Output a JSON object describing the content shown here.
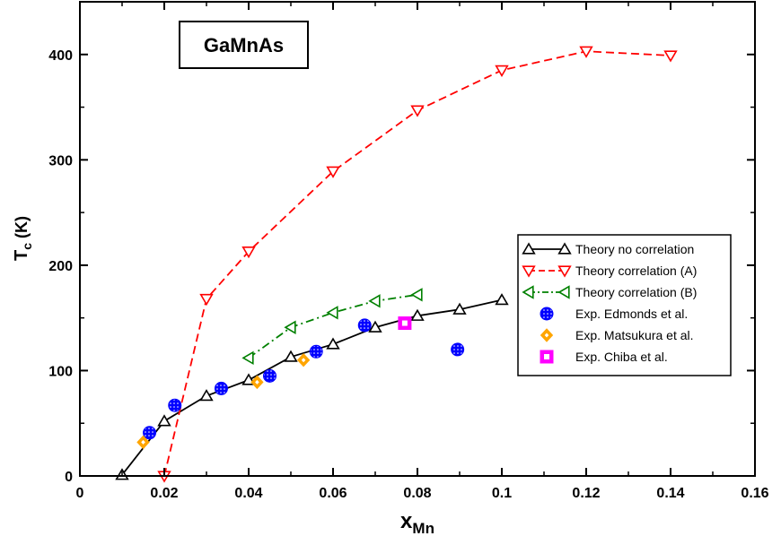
{
  "chart_data": {
    "type": "line",
    "inset_label": "GaMnAs",
    "xlabel_main": "x",
    "xlabel_sub": "Mn",
    "ylabel_main": "T",
    "ylabel_sub": "c",
    "ylabel_unit": " (K)",
    "xlim": [
      0,
      0.16
    ],
    "ylim": [
      0,
      450
    ],
    "xticks": [
      0,
      0.02,
      0.04,
      0.06,
      0.08,
      0.1,
      0.12,
      0.14,
      0.16
    ],
    "xtick_labels": [
      "0",
      "0.02",
      "0.04",
      "0.06",
      "0.08",
      "0.1",
      "0.12",
      "0.14",
      "0.16"
    ],
    "yticks": [
      0,
      100,
      200,
      300,
      400
    ],
    "ytick_labels": [
      "0",
      "100",
      "200",
      "300",
      "400"
    ],
    "grid": false,
    "legend_position": "right",
    "series": [
      {
        "name": "Theory no correlation",
        "color": "#000000",
        "marker": "triangle-up",
        "line": "solid",
        "x": [
          0.01,
          0.02,
          0.03,
          0.04,
          0.05,
          0.06,
          0.07,
          0.08,
          0.09,
          0.1
        ],
        "y": [
          1,
          52,
          76,
          91,
          113,
          125,
          141,
          152,
          158,
          167
        ]
      },
      {
        "name": "Theory correlation (A)",
        "color": "#ff0000",
        "marker": "triangle-down",
        "line": "dashed",
        "x": [
          0.02,
          0.03,
          0.04,
          0.06,
          0.08,
          0.1,
          0.12,
          0.14
        ],
        "y": [
          0,
          168,
          213,
          289,
          347,
          385,
          403,
          399
        ]
      },
      {
        "name": "Theory correlation (B)",
        "color": "#008000",
        "marker": "triangle-left",
        "line": "dashdot",
        "x": [
          0.04,
          0.05,
          0.06,
          0.07,
          0.08
        ],
        "y": [
          112,
          141,
          155,
          166,
          172
        ]
      },
      {
        "name": "Exp. Edmonds et al.",
        "color": "#0000ff",
        "marker": "circle",
        "line": "none",
        "x": [
          0.0165,
          0.0225,
          0.0335,
          0.045,
          0.056,
          0.0675,
          0.0895
        ],
        "y": [
          41,
          67,
          83,
          95,
          118,
          143,
          120
        ]
      },
      {
        "name": "Exp. Matsukura et al.",
        "color": "#ffa500",
        "marker": "diamond",
        "line": "none",
        "x": [
          0.015,
          0.042,
          0.053
        ],
        "y": [
          32,
          89,
          110
        ]
      },
      {
        "name": "Exp. Chiba et al.",
        "color": "#ff00ff",
        "marker": "square",
        "line": "none",
        "x": [
          0.077
        ],
        "y": [
          145
        ]
      }
    ]
  }
}
